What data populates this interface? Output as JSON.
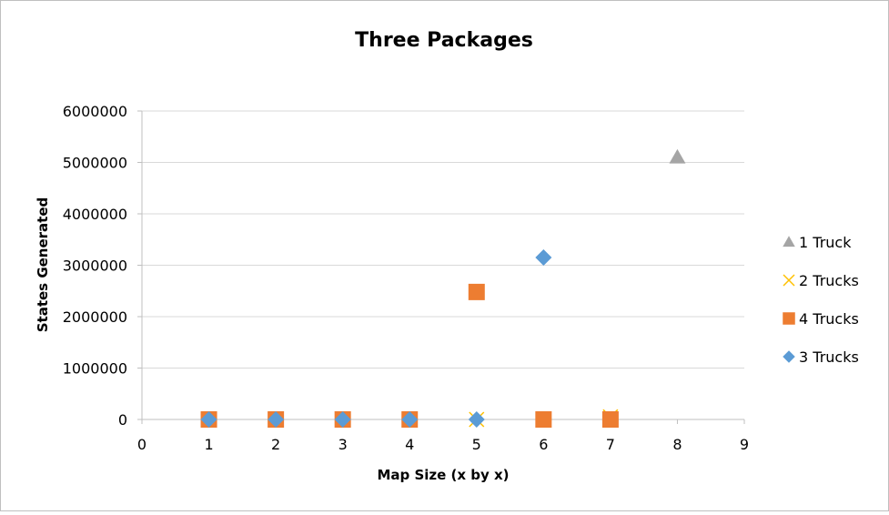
{
  "chart_data": {
    "type": "scatter",
    "title": "Three Packages",
    "xlabel": "Map Size (x by x)",
    "ylabel": "States Generated",
    "xlim": [
      0,
      9
    ],
    "ylim": [
      0,
      6000000
    ],
    "x_ticks": [
      "0",
      "1",
      "2",
      "3",
      "4",
      "5",
      "6",
      "7",
      "8",
      "9"
    ],
    "y_ticks": [
      "0",
      "1000000",
      "2000000",
      "3000000",
      "4000000",
      "5000000",
      "6000000"
    ],
    "grid": "horizontal",
    "legend_position": "right",
    "series": [
      {
        "name": "1 Truck",
        "marker": "triangle",
        "color": "#a5a5a5",
        "points": [
          [
            8,
            5100000
          ]
        ]
      },
      {
        "name": "2 Trucks",
        "marker": "x",
        "color": "#ffc000",
        "points": [
          [
            1,
            0
          ],
          [
            2,
            0
          ],
          [
            3,
            0
          ],
          [
            4,
            0
          ],
          [
            5,
            0
          ],
          [
            6,
            0
          ],
          [
            7,
            50000
          ]
        ]
      },
      {
        "name": "4 Trucks",
        "marker": "square",
        "color": "#ed7d31",
        "points": [
          [
            1,
            0
          ],
          [
            2,
            0
          ],
          [
            3,
            0
          ],
          [
            4,
            0
          ],
          [
            5,
            2480000
          ],
          [
            6,
            0
          ],
          [
            7,
            0
          ]
        ]
      },
      {
        "name": "3 Trucks",
        "marker": "diamond",
        "color": "#5b9bd5",
        "points": [
          [
            1,
            0
          ],
          [
            2,
            0
          ],
          [
            3,
            0
          ],
          [
            4,
            0
          ],
          [
            5,
            0
          ],
          [
            6,
            3150000
          ]
        ]
      }
    ]
  }
}
